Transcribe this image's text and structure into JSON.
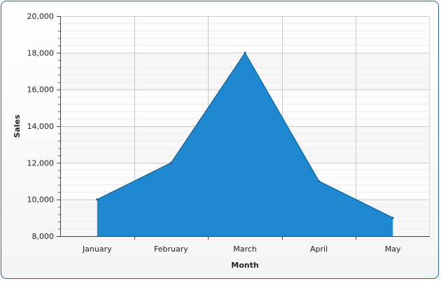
{
  "chart_data": {
    "type": "area",
    "title": "",
    "xlabel": "Month",
    "ylabel": "Sales",
    "categories": [
      "January",
      "February",
      "March",
      "April",
      "May"
    ],
    "series": [
      {
        "values": [
          10000,
          12000,
          18000,
          11000,
          9000
        ],
        "color": "#1e88d1"
      }
    ],
    "ylim": [
      8000,
      20000
    ],
    "ytick_step": 2000,
    "yticks": [
      "8,000",
      "10,000",
      "12,000",
      "14,000",
      "16,000",
      "18,000",
      "20,000"
    ],
    "grid": true,
    "legend": "none"
  }
}
